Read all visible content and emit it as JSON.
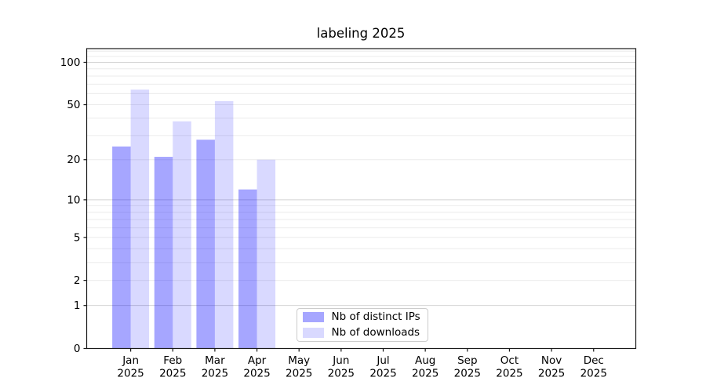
{
  "chart_data": {
    "type": "bar",
    "title": "labeling 2025",
    "categories": [
      "Jan 2025",
      "Feb 2025",
      "Mar 2025",
      "Apr 2025",
      "May 2025",
      "Jun 2025",
      "Jul 2025",
      "Aug 2025",
      "Sep 2025",
      "Oct 2025",
      "Nov 2025",
      "Dec 2025"
    ],
    "series": [
      {
        "name": "Nb of distinct IPs",
        "color": "rgba(0,0,255,0.35)",
        "values": [
          25,
          21,
          28,
          12,
          null,
          null,
          null,
          null,
          null,
          null,
          null,
          null
        ]
      },
      {
        "name": "Nb of downloads",
        "color": "rgba(0,0,255,0.15)",
        "values": [
          64,
          38,
          53,
          20,
          null,
          null,
          null,
          null,
          null,
          null,
          null,
          null
        ]
      }
    ],
    "yscale": "log10(1+y)",
    "yticks": [
      0,
      1,
      2,
      5,
      10,
      20,
      50,
      100
    ],
    "ylim": [
      0,
      125
    ],
    "xlabel": "",
    "ylabel": "",
    "grid": true,
    "legend_position": "inside-bottom-center-left"
  },
  "colors": {
    "grid_major": "#d4d4d4",
    "grid_minor": "#ebebeb",
    "frame": "#1a1a1a",
    "text": "#000000"
  }
}
